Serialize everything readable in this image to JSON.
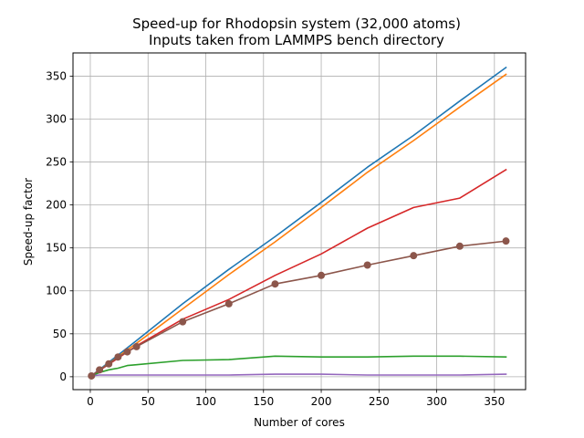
{
  "chart_data": {
    "type": "line",
    "title": "Speed-up for Rhodopsin system (32,000 atoms)",
    "subtitle": "Inputs taken from LAMMPS bench directory",
    "xlabel": "Number of cores",
    "ylabel": "Speed-up factor",
    "xlim": [
      -15,
      377
    ],
    "ylim": [
      -15,
      377
    ],
    "xticks": [
      0,
      50,
      100,
      150,
      200,
      250,
      300,
      350
    ],
    "yticks": [
      0,
      50,
      100,
      150,
      200,
      250,
      300,
      350
    ],
    "grid": true,
    "series": [
      {
        "color": "#1f77b4",
        "marker": false,
        "x": [
          1,
          40,
          80,
          120,
          160,
          200,
          240,
          280,
          320,
          360
        ],
        "y": [
          1,
          42,
          85,
          125,
          163,
          203,
          244,
          281,
          321,
          360
        ]
      },
      {
        "color": "#ff7f0e",
        "marker": false,
        "x": [
          1,
          40,
          80,
          120,
          160,
          200,
          240,
          280,
          320,
          360
        ],
        "y": [
          1,
          39,
          79,
          119,
          157,
          197,
          238,
          275,
          314,
          352
        ]
      },
      {
        "color": "#d62728",
        "marker": false,
        "x": [
          1,
          40,
          80,
          120,
          160,
          200,
          240,
          280,
          320,
          360
        ],
        "y": [
          1,
          36,
          67,
          90,
          118,
          143,
          173,
          197,
          208,
          241
        ]
      },
      {
        "color": "#2ca02c",
        "marker": false,
        "x": [
          1,
          8,
          16,
          24,
          32,
          40,
          80,
          120,
          160,
          200,
          240,
          280,
          320,
          360
        ],
        "y": [
          1,
          5,
          8,
          10,
          13,
          14,
          19,
          20,
          24,
          23,
          23,
          24,
          24,
          23
        ]
      },
      {
        "color": "#9467bd",
        "marker": false,
        "x": [
          1,
          8,
          16,
          40,
          80,
          120,
          160,
          200,
          240,
          280,
          320,
          360
        ],
        "y": [
          1,
          2,
          2,
          2,
          2,
          2,
          3,
          3,
          2,
          2,
          2,
          3
        ]
      },
      {
        "color": "#8c564b",
        "marker": true,
        "x": [
          1,
          8,
          16,
          24,
          32,
          40,
          80,
          120,
          160,
          200,
          240,
          280,
          320,
          360
        ],
        "y": [
          1,
          8,
          15,
          23,
          29,
          35,
          64,
          85,
          108,
          118,
          130,
          141,
          152,
          158
        ]
      }
    ]
  }
}
